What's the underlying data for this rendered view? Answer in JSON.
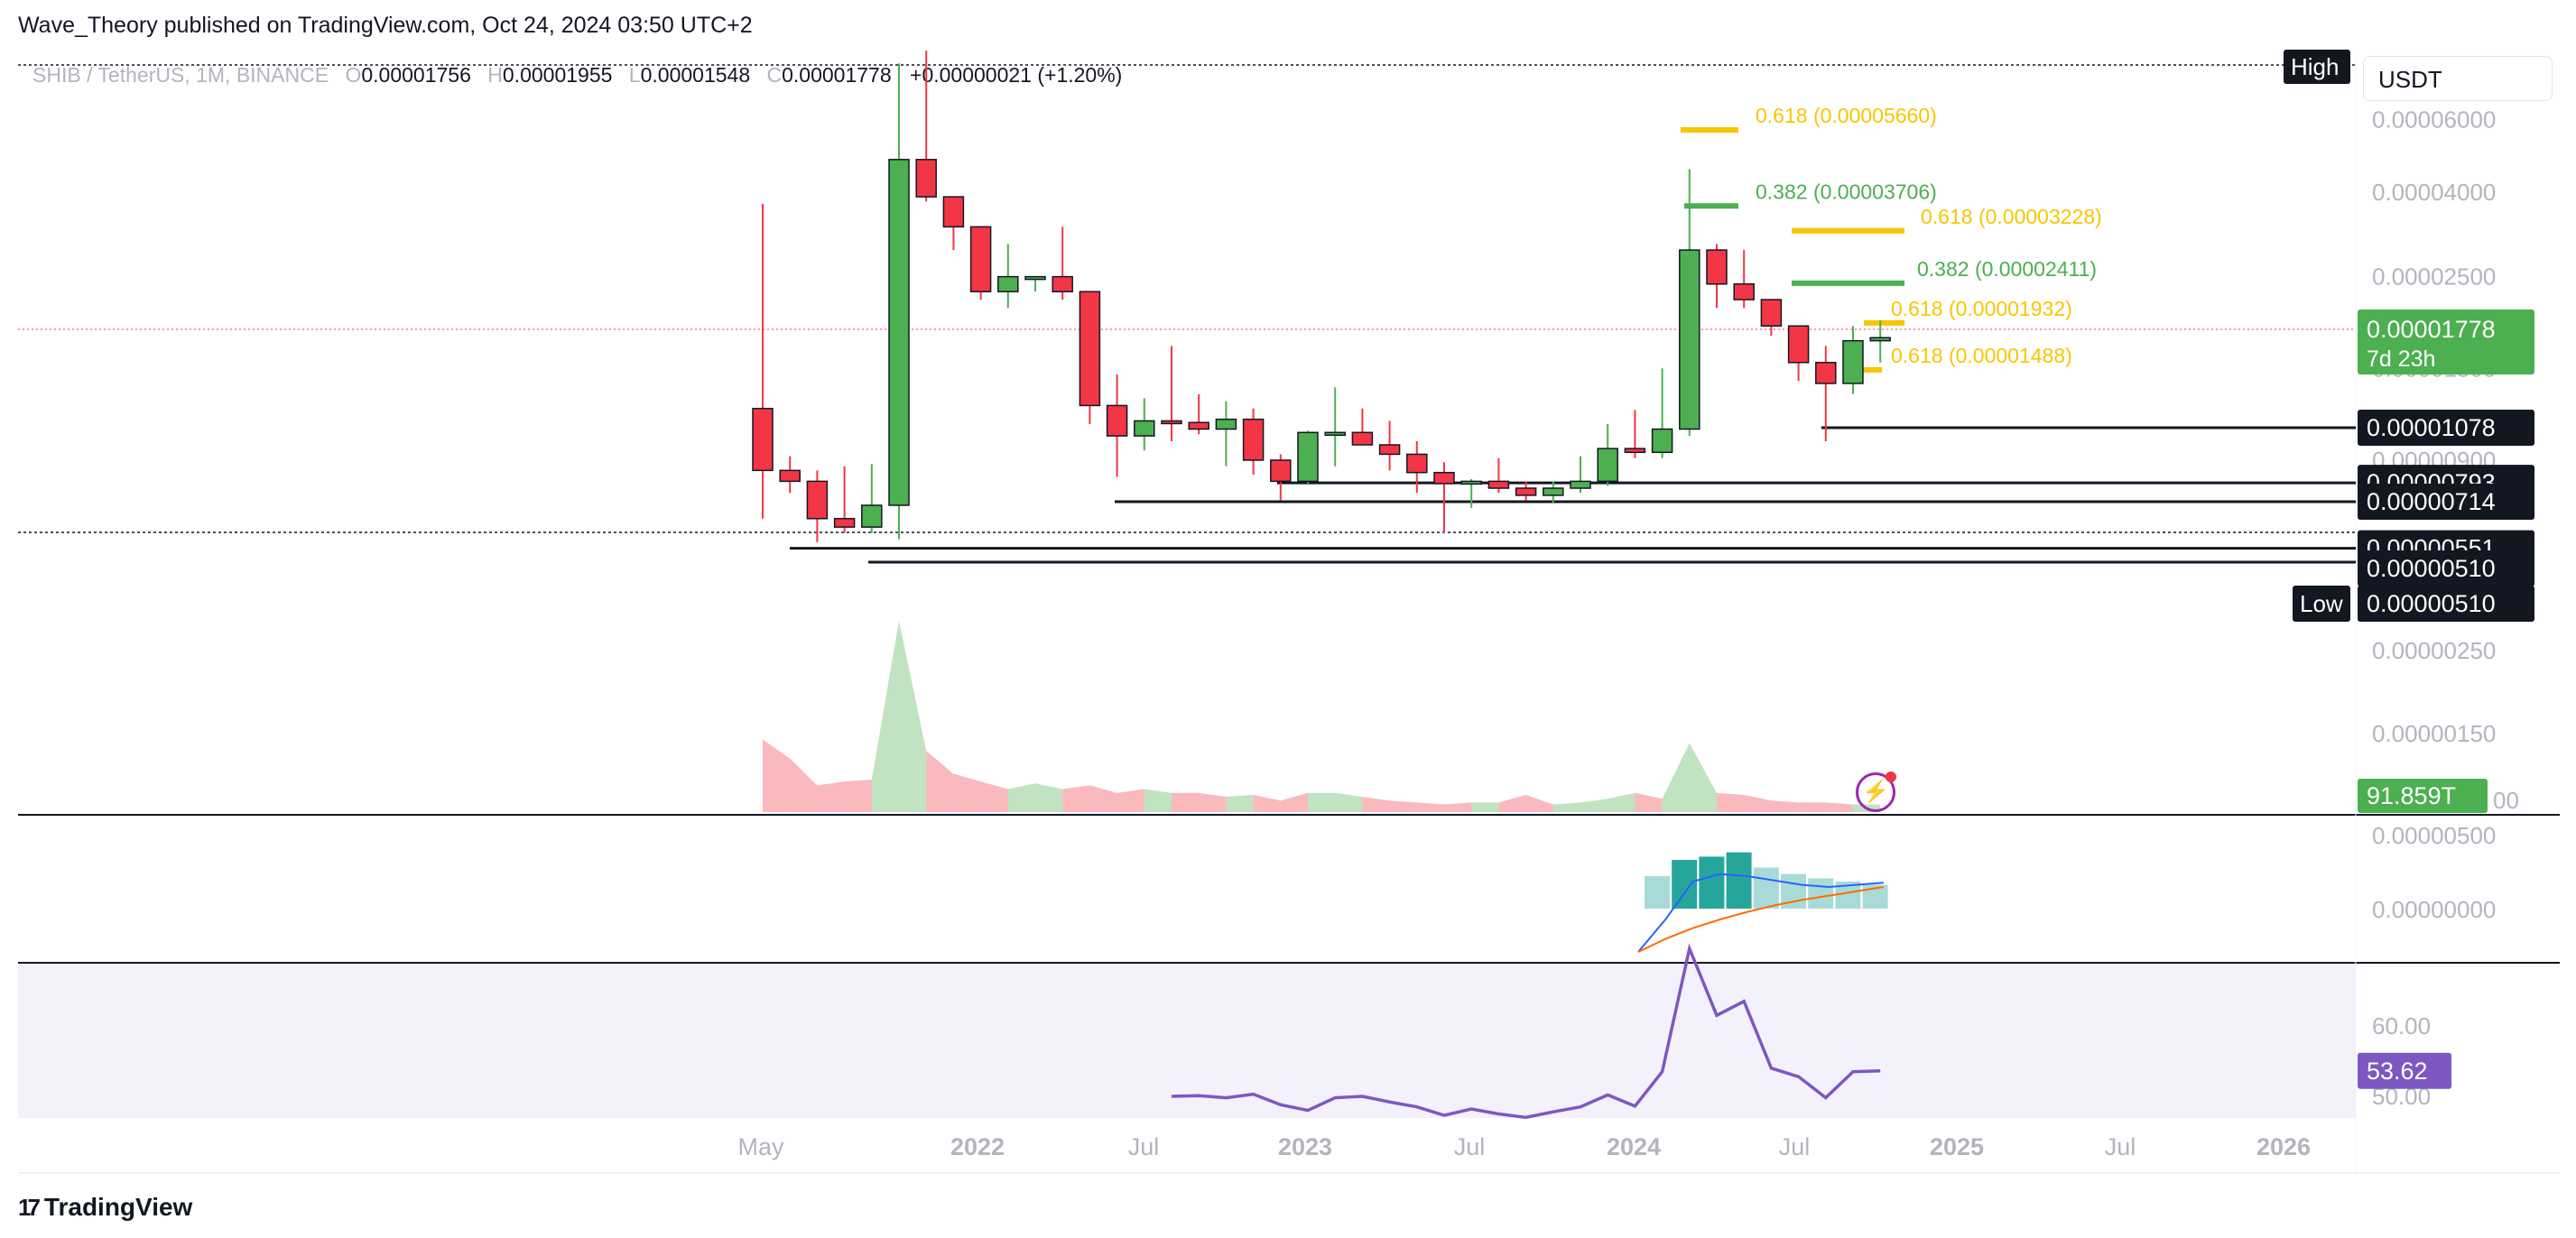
{
  "publisher": "Wave_Theory published on TradingView.com, Oct 24, 2024 03:50 UTC+2",
  "symbol": "SHIB / TetherUS, 1M, BINANCE",
  "ohlc": {
    "o_label": "O",
    "o": "0.00001756",
    "h_label": "H",
    "h": "0.00001955",
    "l_label": "L",
    "l": "0.00001548",
    "c_label": "C",
    "c": "0.00001778",
    "change": "+0.00000021 (+1.20%)"
  },
  "currency": "USDT",
  "branding": {
    "icon": "tradingview-logo-icon",
    "name": "TradingView"
  },
  "colors": {
    "up": "#4caf50",
    "down": "#f23645",
    "fib_green": "#4caf50",
    "fib_yellow": "#f7c600",
    "rsi": "#7e57c2",
    "macd": "#2962ff",
    "signal": "#ff6d00",
    "hist": "#26a69a"
  },
  "chart_data": [
    {
      "type": "candlestick",
      "title": "",
      "x": [
        "2021-05",
        "2021-06",
        "2021-07",
        "2021-08",
        "2021-09",
        "2021-10",
        "2021-11",
        "2021-12",
        "2022-01",
        "2022-02",
        "2022-03",
        "2022-04",
        "2022-05",
        "2022-06",
        "2022-07",
        "2022-08",
        "2022-09",
        "2022-10",
        "2022-11",
        "2022-12",
        "2023-01",
        "2023-02",
        "2023-03",
        "2023-04",
        "2023-05",
        "2023-06",
        "2023-07",
        "2023-08",
        "2023-09",
        "2023-10",
        "2023-11",
        "2023-12",
        "2024-01",
        "2024-02",
        "2024-03",
        "2024-04",
        "2024-05",
        "2024-06",
        "2024-07",
        "2024-08",
        "2024-09",
        "2024-10"
      ],
      "open": [
        1.2e-05,
        8.5e-06,
        8e-06,
        6.5e-06,
        6.2e-06,
        7e-06,
        4.8e-05,
        3.9e-05,
        3.3e-05,
        2.3e-05,
        2.5e-05,
        2.5e-05,
        2.3e-05,
        1.22e-05,
        1.03e-05,
        1.12e-05,
        1.11e-05,
        1.07e-05,
        1.13e-05,
        9e-06,
        8e-06,
        1.05e-05,
        1.05e-05,
        9.8e-06,
        9.3e-06,
        8.4e-06,
        7.9e-06,
        8e-06,
        7.7e-06,
        7.4e-06,
        7.7e-06,
        8e-06,
        9.6e-06,
        9.4e-06,
        1.07e-05,
        2.9e-05,
        2.4e-05,
        2.2e-05,
        1.9e-05,
        1.55e-05,
        1.38e-05,
        1.75e-05
      ],
      "high": [
        3.75e-05,
        9.2e-06,
        8.5e-06,
        8.7e-06,
        8.8e-06,
        8.2e-05,
        8.8e-05,
        3.9e-05,
        3.3e-05,
        3e-05,
        2.5e-05,
        3.3e-05,
        2.3e-05,
        1.45e-05,
        1.27e-05,
        1.7e-05,
        1.3e-05,
        1.25e-05,
        1.2e-05,
        9.3e-06,
        1.06e-05,
        1.35e-05,
        1.2e-05,
        1.12e-05,
        1e-05,
        8.9e-06,
        8.1e-06,
        9.1e-06,
        8e-06,
        8e-06,
        9.2e-06,
        1.1e-05,
        1.19e-05,
        1.5e-05,
        4.55e-05,
        3e-05,
        2.9e-05,
        2.2e-05,
        1.9e-05,
        1.7e-05,
        1.9e-05,
        1.96e-05
      ],
      "low": [
        6.5e-06,
        7.5e-06,
        5.7e-06,
        6e-06,
        6e-06,
        5.8e-06,
        3.8e-05,
        2.9e-05,
        2.2e-05,
        2.1e-05,
        2.3e-05,
        2.2e-05,
        1.1e-05,
        8.2e-06,
        9.5e-06,
        1e-05,
        1.04e-05,
        8.7e-06,
        8.3e-06,
        7.2e-06,
        7.9e-06,
        8.7e-06,
        9.8e-06,
        8.5e-06,
        7.5e-06,
        6e-06,
        6.9e-06,
        7.5e-06,
        7.2e-06,
        7.1e-06,
        7.5e-06,
        7.8e-06,
        9.1e-06,
        9.1e-06,
        1.03e-05,
        2.1e-05,
        2.1e-05,
        1.8e-05,
        1.4e-05,
        1e-05,
        1.3e-05,
        1.55e-05
      ],
      "close": [
        8.5e-06,
        8e-06,
        6.5e-06,
        6.2e-06,
        7e-06,
        4.8e-05,
        3.9e-05,
        3.3e-05,
        2.3e-05,
        2.5e-05,
        2.5e-05,
        2.3e-05,
        1.22e-05,
        1.03e-05,
        1.12e-05,
        1.11e-05,
        1.07e-05,
        1.13e-05,
        9e-06,
        8e-06,
        1.05e-05,
        1.05e-05,
        9.8e-06,
        9.3e-06,
        8.4e-06,
        7.9e-06,
        8e-06,
        7.7e-06,
        7.4e-06,
        7.7e-06,
        8e-06,
        9.6e-06,
        9.4e-06,
        1.07e-05,
        2.9e-05,
        2.4e-05,
        2.2e-05,
        1.9e-05,
        1.55e-05,
        1.38e-05,
        1.75e-05,
        1.78e-05
      ],
      "ylabel": "",
      "y_scale": "log",
      "y_ticks": [
        "0.00006000",
        "0.00004000",
        "0.00002500",
        "0.00001500",
        "0.00000900"
      ],
      "x_ticks": [
        "May",
        "2022",
        "Jul",
        "2023",
        "Jul",
        "2024",
        "Jul",
        "2025",
        "Jul",
        "2026"
      ],
      "price_labels": [
        {
          "text": "0.00001778",
          "sub": "7d 23h"
        },
        {
          "text": "0.00001078"
        },
        {
          "text": "0.00000793"
        },
        {
          "text": "0.00000714"
        },
        {
          "text": "0.00000551"
        },
        {
          "text": "0.00000510"
        },
        {
          "text": "0.00000510",
          "tag": "Low"
        }
      ],
      "high_tag": "High",
      "support_levels": [
        1.078e-05,
        7.93e-06,
        7.14e-06,
        5.51e-06,
        5.1e-06
      ],
      "fib_levels": [
        {
          "text": "0.618 (0.00005660)",
          "value": 5.66e-05,
          "color": "yellow"
        },
        {
          "text": "0.382 (0.00003706)",
          "value": 3.706e-05,
          "color": "green"
        },
        {
          "text": "0.618 (0.00003228)",
          "value": 3.228e-05,
          "color": "yellow"
        },
        {
          "text": "0.382 (0.00002411)",
          "value": 2.411e-05,
          "color": "green"
        },
        {
          "text": "0.618 (0.00001932)",
          "value": 1.932e-05,
          "color": "yellow"
        },
        {
          "text": "0.618 (0.00001488)",
          "value": 1.488e-05,
          "color": "yellow"
        }
      ]
    },
    {
      "type": "area",
      "title": "",
      "series_label": "Volume",
      "last_value": "91.859T",
      "values": [
        38,
        28,
        14,
        16,
        17,
        100,
        32,
        20,
        16,
        12,
        15,
        12,
        14,
        10,
        12,
        10,
        10,
        8,
        9,
        6,
        10,
        10,
        8,
        6,
        5,
        4,
        5,
        5,
        9,
        4,
        5,
        7,
        10,
        7,
        36,
        10,
        9,
        6,
        5,
        5,
        4,
        4
      ]
    },
    {
      "type": "bar",
      "title": "",
      "series_label": "MACD",
      "y_ticks": [
        "0.00000500",
        "0.00000000"
      ],
      "histogram": [
        3.0,
        4.5,
        4.8,
        5.2,
        3.8,
        3.2,
        2.8,
        2.5,
        2.2
      ],
      "macd_line": [
        -4,
        -1,
        2.5,
        3.2,
        3.0,
        2.6,
        2.2,
        2.0,
        2.2,
        2.4
      ],
      "signal_line": [
        -4,
        -2.8,
        -1.8,
        -1.0,
        -0.3,
        0.3,
        0.8,
        1.2,
        1.6,
        2.0
      ]
    },
    {
      "type": "line",
      "title": "",
      "series_label": "RSI",
      "y_ticks": [
        "60.00",
        "50.00"
      ],
      "last_value": "53.62",
      "values": [
        50.0,
        50.1,
        49.8,
        50.3,
        48.8,
        48.0,
        49.8,
        50.0,
        49.2,
        48.5,
        47.3,
        48.2,
        47.5,
        47.0,
        47.8,
        48.5,
        50.2,
        48.6,
        53.5,
        71.0,
        61.5,
        63.5,
        54.0,
        52.8,
        49.8,
        53.5,
        53.62
      ]
    }
  ]
}
